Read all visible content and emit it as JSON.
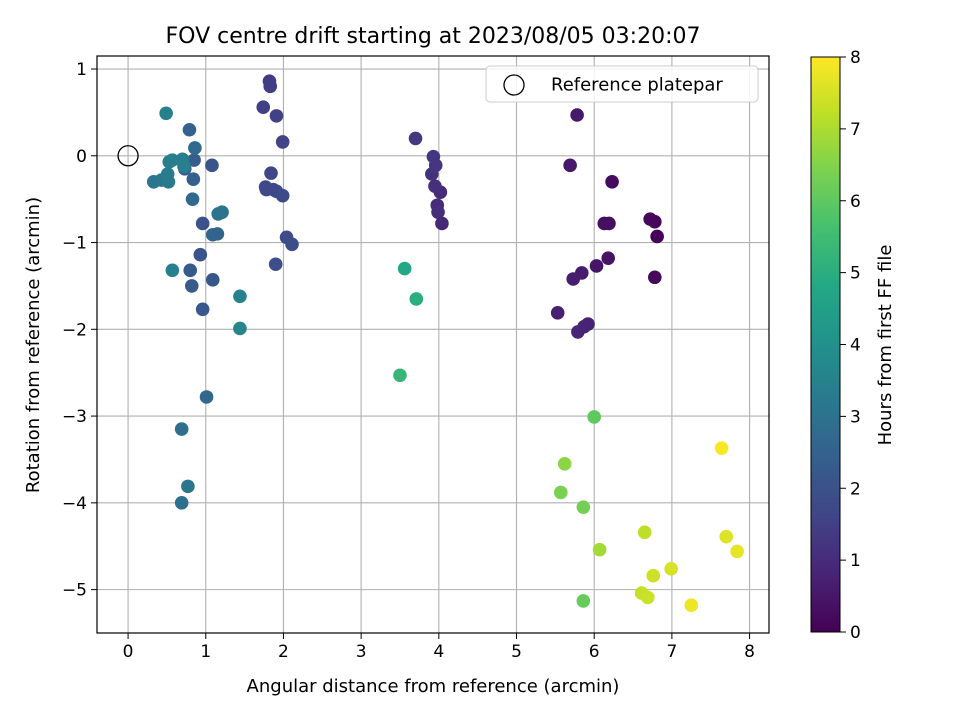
{
  "chart_data": {
    "type": "scatter",
    "title": "FOV centre drift starting at 2023/08/05 03:20:07",
    "xlabel": "Angular distance from reference (arcmin)",
    "ylabel": "Rotation from reference (arcmin)",
    "xlim": [
      -0.4,
      8.25
    ],
    "ylim": [
      -5.5,
      1.15
    ],
    "xticks": [
      0,
      1,
      2,
      3,
      4,
      5,
      6,
      7,
      8
    ],
    "yticks": [
      -5,
      -4,
      -3,
      -2,
      -1,
      0,
      1
    ],
    "grid": true,
    "legend_position": "top-right",
    "legend": {
      "label": "Reference platepar",
      "marker": "open-circle"
    },
    "reference_point": {
      "x": 0,
      "y": 0
    },
    "colorbar": {
      "label": "Hours from first FF file",
      "colormap": "viridis",
      "range": [
        0,
        8
      ],
      "ticks": [
        0,
        1,
        2,
        3,
        4,
        5,
        6,
        7,
        8
      ]
    },
    "points": [
      {
        "x": 6.81,
        "y": -0.93,
        "t": 0.05
      },
      {
        "x": 6.78,
        "y": -0.76,
        "t": 0.1
      },
      {
        "x": 6.72,
        "y": -0.73,
        "t": 0.15
      },
      {
        "x": 6.78,
        "y": -1.4,
        "t": 0.2
      },
      {
        "x": 6.23,
        "y": -0.3,
        "t": 0.25
      },
      {
        "x": 6.19,
        "y": -0.78,
        "t": 0.3
      },
      {
        "x": 6.13,
        "y": -0.78,
        "t": 0.35
      },
      {
        "x": 6.18,
        "y": -1.18,
        "t": 0.4
      },
      {
        "x": 6.03,
        "y": -1.27,
        "t": 0.45
      },
      {
        "x": 5.69,
        "y": -0.11,
        "t": 0.5
      },
      {
        "x": 5.78,
        "y": 0.47,
        "t": 0.55
      },
      {
        "x": 5.84,
        "y": -1.35,
        "t": 0.6
      },
      {
        "x": 5.73,
        "y": -1.42,
        "t": 0.65
      },
      {
        "x": 5.53,
        "y": -1.81,
        "t": 0.7
      },
      {
        "x": 5.92,
        "y": -1.94,
        "t": 0.75
      },
      {
        "x": 5.87,
        "y": -1.97,
        "t": 0.8
      },
      {
        "x": 5.79,
        "y": -2.03,
        "t": 0.85
      },
      {
        "x": 4.04,
        "y": -0.78,
        "t": 0.9
      },
      {
        "x": 4.02,
        "y": -0.42,
        "t": 0.95
      },
      {
        "x": 3.98,
        "y": -0.57,
        "t": 1.0
      },
      {
        "x": 3.99,
        "y": -0.65,
        "t": 1.05
      },
      {
        "x": 3.95,
        "y": -0.35,
        "t": 1.1
      },
      {
        "x": 3.91,
        "y": -0.21,
        "t": 1.15
      },
      {
        "x": 3.96,
        "y": -0.11,
        "t": 1.2
      },
      {
        "x": 3.93,
        "y": -0.01,
        "t": 1.25
      },
      {
        "x": 3.7,
        "y": 0.2,
        "t": 1.3
      },
      {
        "x": 1.82,
        "y": 0.86,
        "t": 1.4
      },
      {
        "x": 1.83,
        "y": 0.8,
        "t": 1.45
      },
      {
        "x": 1.74,
        "y": 0.56,
        "t": 1.5
      },
      {
        "x": 1.91,
        "y": 0.46,
        "t": 1.55
      },
      {
        "x": 1.99,
        "y": 0.16,
        "t": 1.6
      },
      {
        "x": 1.84,
        "y": -0.2,
        "t": 1.65
      },
      {
        "x": 1.77,
        "y": -0.36,
        "t": 1.7
      },
      {
        "x": 1.78,
        "y": -0.39,
        "t": 1.72
      },
      {
        "x": 1.87,
        "y": -0.39,
        "t": 1.75
      },
      {
        "x": 1.91,
        "y": -0.41,
        "t": 1.78
      },
      {
        "x": 1.99,
        "y": -0.46,
        "t": 1.8
      },
      {
        "x": 2.04,
        "y": -0.94,
        "t": 1.85
      },
      {
        "x": 2.11,
        "y": -1.02,
        "t": 1.88
      },
      {
        "x": 1.9,
        "y": -1.25,
        "t": 1.9
      },
      {
        "x": 0.96,
        "y": -0.78,
        "t": 2.0
      },
      {
        "x": 1.08,
        "y": -0.11,
        "t": 2.05
      },
      {
        "x": 0.93,
        "y": -1.14,
        "t": 2.1
      },
      {
        "x": 1.09,
        "y": -1.43,
        "t": 2.15
      },
      {
        "x": 0.96,
        "y": -1.77,
        "t": 2.2
      },
      {
        "x": 0.8,
        "y": -1.32,
        "t": 2.25
      },
      {
        "x": 0.82,
        "y": -1.5,
        "t": 2.3
      },
      {
        "x": 0.85,
        "y": -0.05,
        "t": 2.35
      },
      {
        "x": 0.84,
        "y": -0.27,
        "t": 2.4
      },
      {
        "x": 0.79,
        "y": 0.3,
        "t": 2.45
      },
      {
        "x": 0.73,
        "y": -0.15,
        "t": 2.5
      },
      {
        "x": 1.15,
        "y": -0.9,
        "t": 2.55
      },
      {
        "x": 1.09,
        "y": -0.91,
        "t": 2.6
      },
      {
        "x": 1.01,
        "y": -2.78,
        "t": 2.65
      },
      {
        "x": 0.83,
        "y": -0.5,
        "t": 2.7
      },
      {
        "x": 0.86,
        "y": 0.09,
        "t": 2.75
      },
      {
        "x": 0.69,
        "y": -3.15,
        "t": 2.9
      },
      {
        "x": 0.69,
        "y": -4.0,
        "t": 2.95
      },
      {
        "x": 1.16,
        "y": -0.67,
        "t": 3.0
      },
      {
        "x": 1.21,
        "y": -0.65,
        "t": 3.05
      },
      {
        "x": 0.77,
        "y": -3.81,
        "t": 3.1
      },
      {
        "x": 0.33,
        "y": -0.3,
        "t": 3.15
      },
      {
        "x": 0.43,
        "y": -0.28,
        "t": 3.2
      },
      {
        "x": 0.52,
        "y": -0.3,
        "t": 3.25
      },
      {
        "x": 0.51,
        "y": -0.21,
        "t": 3.3
      },
      {
        "x": 0.53,
        "y": -0.07,
        "t": 3.35
      },
      {
        "x": 0.57,
        "y": -0.05,
        "t": 3.38
      },
      {
        "x": 0.7,
        "y": -0.04,
        "t": 3.4
      },
      {
        "x": 0.72,
        "y": -0.12,
        "t": 3.42
      },
      {
        "x": 0.57,
        "y": -1.32,
        "t": 3.45
      },
      {
        "x": 0.49,
        "y": 0.49,
        "t": 3.5
      },
      {
        "x": 1.44,
        "y": -1.62,
        "t": 3.55
      },
      {
        "x": 1.44,
        "y": -1.99,
        "t": 3.6
      },
      {
        "x": 3.56,
        "y": -1.3,
        "t": 4.8
      },
      {
        "x": 3.71,
        "y": -1.65,
        "t": 5.0
      },
      {
        "x": 3.5,
        "y": -2.53,
        "t": 5.3
      },
      {
        "x": 6.0,
        "y": -3.01,
        "t": 6.0
      },
      {
        "x": 5.86,
        "y": -5.13,
        "t": 6.1
      },
      {
        "x": 5.86,
        "y": -4.05,
        "t": 6.3
      },
      {
        "x": 5.57,
        "y": -3.88,
        "t": 6.4
      },
      {
        "x": 5.62,
        "y": -3.55,
        "t": 6.6
      },
      {
        "x": 6.07,
        "y": -4.54,
        "t": 6.9
      },
      {
        "x": 6.65,
        "y": -4.34,
        "t": 7.2
      },
      {
        "x": 6.61,
        "y": -5.04,
        "t": 7.3
      },
      {
        "x": 6.69,
        "y": -5.09,
        "t": 7.35
      },
      {
        "x": 6.76,
        "y": -4.84,
        "t": 7.4
      },
      {
        "x": 6.99,
        "y": -4.76,
        "t": 7.5
      },
      {
        "x": 7.7,
        "y": -4.39,
        "t": 7.6
      },
      {
        "x": 7.84,
        "y": -4.56,
        "t": 7.7
      },
      {
        "x": 7.25,
        "y": -5.18,
        "t": 7.8
      },
      {
        "x": 7.64,
        "y": -3.37,
        "t": 7.95
      }
    ]
  }
}
